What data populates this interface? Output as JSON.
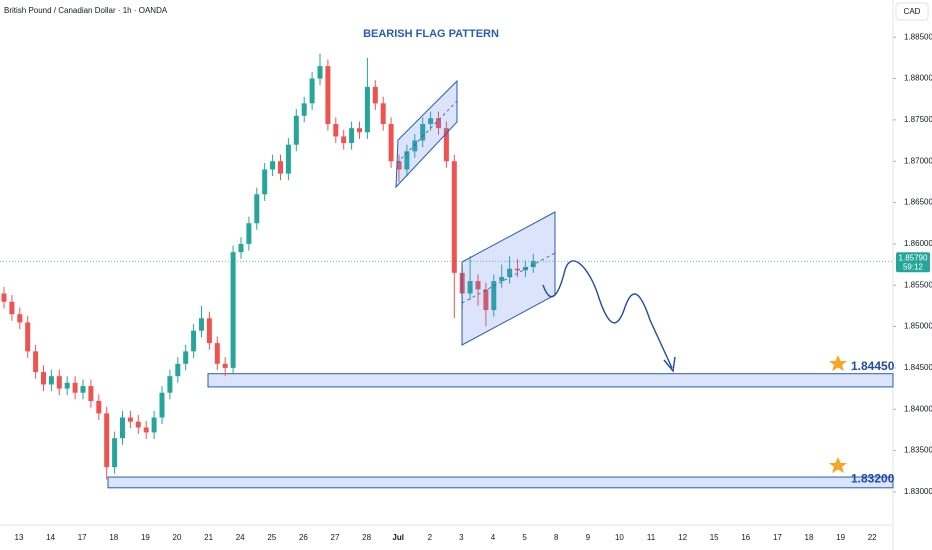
{
  "chart_data": {
    "type": "candlestick",
    "header": "British Pound / Canadian Dollar · 1h · OANDA",
    "currency": "CAD",
    "title": "BEARISH FLAG PATTERN",
    "up_color": "#26a69a",
    "down_color": "#ef5350",
    "grid": false,
    "categories": [
      "13",
      "14",
      "17",
      "18",
      "19",
      "20",
      "21",
      "24",
      "25",
      "26",
      "27",
      "28",
      "Jul",
      "2",
      "3",
      "4",
      "5",
      "8",
      "9",
      "10",
      "11",
      "12",
      "15",
      "16",
      "17",
      "18",
      "19",
      "22"
    ],
    "open": [
      1.854,
      1.853,
      1.8515,
      1.8505,
      1.847,
      1.8445,
      1.843,
      1.844,
      1.8425,
      1.8432,
      1.842,
      1.8428,
      1.841,
      1.8395,
      1.833,
      1.8365,
      1.839,
      1.8385,
      1.8378,
      1.8372,
      1.839,
      1.842,
      1.844,
      1.8455,
      1.847,
      1.8495,
      1.851,
      1.848,
      1.8455,
      1.845,
      1.859,
      1.86,
      1.8625,
      1.866,
      1.869,
      1.87,
      1.8685,
      1.872,
      1.8755,
      1.877,
      1.88,
      1.8815,
      1.8745,
      1.873,
      1.8722,
      1.874,
      1.8735,
      1.879,
      1.877,
      1.8745,
      1.87,
      1.869,
      1.8712,
      1.8725,
      1.8745,
      1.8752,
      1.874,
      1.87,
      1.8565,
      1.854,
      1.8555,
      1.8545,
      1.852,
      1.8555,
      1.856,
      1.857,
      1.8568,
      1.8572
    ],
    "high": [
      1.8548,
      1.8538,
      1.8523,
      1.8513,
      1.8478,
      1.8453,
      1.8448,
      1.8448,
      1.844,
      1.844,
      1.8436,
      1.8436,
      1.8418,
      1.8403,
      1.8373,
      1.8398,
      1.8398,
      1.8393,
      1.8386,
      1.8398,
      1.8428,
      1.8448,
      1.8463,
      1.8478,
      1.8503,
      1.8525,
      1.8518,
      1.8488,
      1.8463,
      1.8598,
      1.8608,
      1.8633,
      1.8668,
      1.8698,
      1.8708,
      1.8708,
      1.8728,
      1.8763,
      1.8778,
      1.8808,
      1.883,
      1.8823,
      1.8753,
      1.8738,
      1.8748,
      1.8748,
      1.8825,
      1.8798,
      1.8778,
      1.8753,
      1.8708,
      1.872,
      1.8733,
      1.8753,
      1.876,
      1.876,
      1.8748,
      1.8708,
      1.8573,
      1.8585,
      1.8563,
      1.8553,
      1.8563,
      1.8575,
      1.8585,
      1.8582,
      1.858,
      1.8588
    ],
    "low": [
      1.8522,
      1.8507,
      1.8497,
      1.8462,
      1.8437,
      1.8422,
      1.8422,
      1.8417,
      1.8417,
      1.8412,
      1.8412,
      1.8402,
      1.8387,
      1.8315,
      1.8322,
      1.8357,
      1.8377,
      1.837,
      1.8364,
      1.8364,
      1.8382,
      1.8412,
      1.8432,
      1.8447,
      1.8462,
      1.8487,
      1.8472,
      1.8447,
      1.844,
      1.8442,
      1.8582,
      1.8592,
      1.8617,
      1.8652,
      1.8682,
      1.8677,
      1.8677,
      1.8712,
      1.8747,
      1.8762,
      1.8792,
      1.8737,
      1.8722,
      1.8714,
      1.8714,
      1.8727,
      1.8727,
      1.8762,
      1.8737,
      1.8692,
      1.8675,
      1.8682,
      1.8704,
      1.8717,
      1.8737,
      1.8732,
      1.8692,
      1.851,
      1.852,
      1.8532,
      1.8525,
      1.85,
      1.8512,
      1.8547,
      1.8552,
      1.856,
      1.856,
      1.8565
    ],
    "close": [
      1.853,
      1.8515,
      1.8505,
      1.847,
      1.8445,
      1.843,
      1.844,
      1.8425,
      1.8432,
      1.842,
      1.8428,
      1.841,
      1.8395,
      1.833,
      1.8365,
      1.839,
      1.8385,
      1.8378,
      1.8372,
      1.839,
      1.842,
      1.844,
      1.8455,
      1.847,
      1.8495,
      1.851,
      1.848,
      1.8455,
      1.845,
      1.859,
      1.86,
      1.8625,
      1.866,
      1.869,
      1.87,
      1.8685,
      1.872,
      1.8755,
      1.877,
      1.88,
      1.8815,
      1.8745,
      1.873,
      1.8722,
      1.874,
      1.8735,
      1.879,
      1.877,
      1.8745,
      1.87,
      1.869,
      1.8712,
      1.8725,
      1.8745,
      1.8752,
      1.874,
      1.87,
      1.8565,
      1.854,
      1.8555,
      1.8545,
      1.852,
      1.8555,
      1.856,
      1.857,
      1.8568,
      1.8572,
      1.8579
    ],
    "ylim": [
      1.826,
      1.8895
    ],
    "yticks": [
      {
        "value": 1.83,
        "label": "1.83000"
      },
      {
        "value": 1.835,
        "label": "1.83500"
      },
      {
        "value": 1.84,
        "label": "1.84000"
      },
      {
        "value": 1.845,
        "label": "1.84500"
      },
      {
        "value": 1.85,
        "label": "1.85000"
      },
      {
        "value": 1.855,
        "label": "1.85500"
      },
      {
        "value": 1.86,
        "label": "1.86000"
      },
      {
        "value": 1.865,
        "label": "1.86500"
      },
      {
        "value": 1.87,
        "label": "1.87000"
      },
      {
        "value": 1.875,
        "label": "1.87500"
      },
      {
        "value": 1.88,
        "label": "1.88000"
      },
      {
        "value": 1.885,
        "label": "1.88500"
      }
    ],
    "current_price": {
      "value": 1.8579,
      "label": "1.85790",
      "countdown": "59:12"
    },
    "zones": [
      {
        "value": 1.8445,
        "label": "1.84450",
        "range": [
          1.8427,
          1.8443
        ]
      },
      {
        "value": 1.832,
        "label": "1.83200",
        "range": [
          1.8305,
          1.8318
        ]
      }
    ]
  }
}
